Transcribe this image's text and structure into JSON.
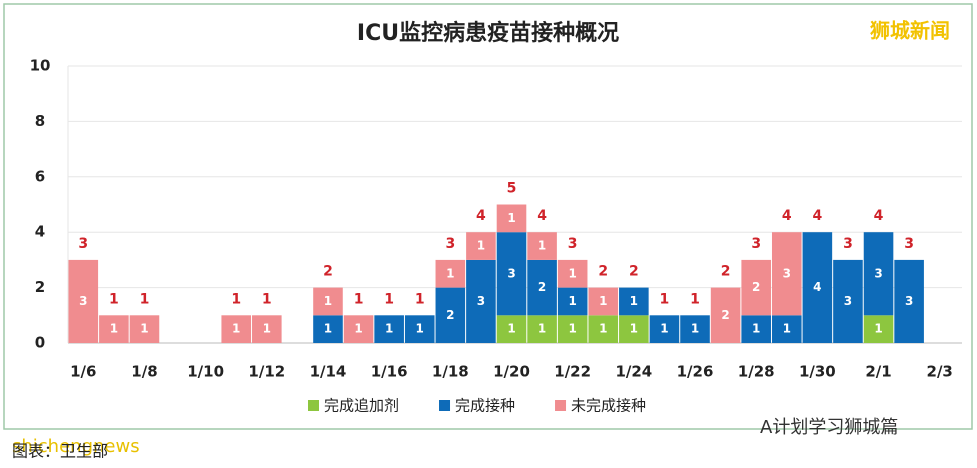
{
  "chart_data": {
    "type": "stacked_bar",
    "title": "ICU监控病患疫苗接种概况",
    "categories": [
      "1/6",
      null,
      "1/8",
      null,
      "1/10",
      null,
      "1/12",
      null,
      "1/14",
      null,
      "1/16",
      null,
      "1/18",
      null,
      "1/20",
      null,
      "1/22",
      null,
      "1/24",
      null,
      "1/26",
      null,
      "1/28",
      null,
      "1/30",
      null,
      "2/1",
      null,
      "2/3"
    ],
    "series": [
      {
        "name": "完成追加剂",
        "color": "#8dc63f",
        "values": [
          0,
          0,
          0,
          0,
          0,
          0,
          0,
          0,
          0,
          0,
          0,
          0,
          0,
          0,
          1,
          1,
          1,
          1,
          1,
          0,
          0,
          0,
          0,
          0,
          0,
          0,
          1,
          0,
          0
        ]
      },
      {
        "name": "完成接种",
        "color": "#0e6bb8",
        "values": [
          0,
          0,
          0,
          0,
          0,
          0,
          0,
          0,
          1,
          0,
          1,
          1,
          2,
          3,
          3,
          2,
          1,
          0,
          1,
          1,
          1,
          0,
          1,
          1,
          4,
          3,
          3,
          3,
          0
        ]
      },
      {
        "name": "未完成接种",
        "color": "#f08c8f",
        "values": [
          3,
          1,
          1,
          0,
          0,
          1,
          1,
          0,
          1,
          1,
          0,
          0,
          1,
          1,
          1,
          1,
          1,
          1,
          0,
          0,
          0,
          2,
          2,
          3,
          0,
          0,
          0,
          0,
          0
        ]
      }
    ],
    "totals": [
      3,
      1,
      1,
      null,
      null,
      1,
      1,
      null,
      2,
      1,
      1,
      1,
      3,
      4,
      5,
      4,
      3,
      2,
      2,
      1,
      1,
      2,
      3,
      4,
      4,
      3,
      4,
      3,
      null
    ],
    "ylim": [
      0,
      10
    ],
    "yticks": [
      0,
      2,
      4,
      6,
      8,
      10
    ],
    "grid": true,
    "annotations": [
      "狮城新闻",
      "shichengnews",
      "图表：卫生部",
      "A计划学习狮城篇"
    ]
  }
}
